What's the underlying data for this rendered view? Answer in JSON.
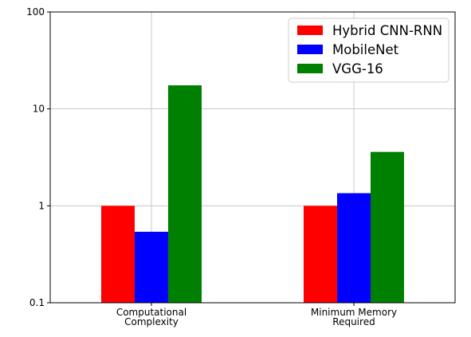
{
  "chart_data": {
    "type": "bar",
    "yscale": "log",
    "ylim": [
      0.1,
      100
    ],
    "yticks": [
      0.1,
      1,
      10,
      100
    ],
    "ytick_labels": [
      "0.1",
      "1",
      "10",
      "100"
    ],
    "grid": true,
    "legend_position": "top-right",
    "categories": [
      [
        "Computational",
        "Complexity"
      ],
      [
        "Minimum Memory",
        "Required"
      ]
    ],
    "series": [
      {
        "name": "Hybrid CNN-RNN",
        "color": "#ff0000",
        "values": [
          1,
          1
        ]
      },
      {
        "name": "MobileNet",
        "color": "#0000ff",
        "values": [
          0.54,
          1.35
        ]
      },
      {
        "name": "VGG-16",
        "color": "#008000",
        "values": [
          17.5,
          3.6
        ]
      }
    ]
  }
}
